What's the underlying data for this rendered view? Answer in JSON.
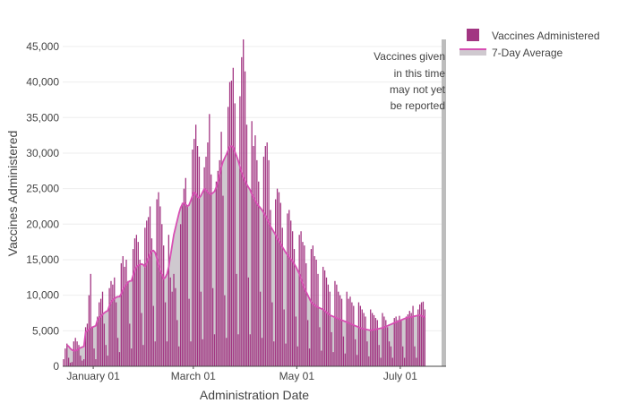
{
  "chart_data": {
    "type": "bar",
    "xlabel": "Administration Date",
    "ylabel": "Vaccines Administered",
    "x_start": "2020-12-14",
    "x_range": [
      "2020-12-14",
      "2021-07-28"
    ],
    "ylim": [
      0,
      46000
    ],
    "grid": true,
    "legend_position": "top-right",
    "x_ticks": [
      {
        "date": "2021-01-01",
        "label": "January 01"
      },
      {
        "date": "2021-03-01",
        "label": "March 01"
      },
      {
        "date": "2021-05-01",
        "label": "May 01"
      },
      {
        "date": "2021-07-01",
        "label": "July 01"
      }
    ],
    "y_ticks": [
      {
        "value": 0,
        "label": "0"
      },
      {
        "value": 5000,
        "label": "5,000"
      },
      {
        "value": 10000,
        "label": "10,000"
      },
      {
        "value": 15000,
        "label": "15,000"
      },
      {
        "value": 20000,
        "label": "20,000"
      },
      {
        "value": 25000,
        "label": "25,000"
      },
      {
        "value": 30000,
        "label": "30,000"
      },
      {
        "value": 35000,
        "label": "35,000"
      },
      {
        "value": 40000,
        "label": "40,000"
      },
      {
        "value": 45000,
        "label": "45,000"
      }
    ],
    "series": [
      {
        "name": "Vaccines Administered",
        "kind": "bar",
        "color": "#a23582",
        "values": [
          1000,
          2500,
          3200,
          1200,
          500,
          600,
          3500,
          4000,
          3500,
          3000,
          1500,
          800,
          1000,
          5500,
          6000,
          10000,
          13000,
          5500,
          2500,
          1000,
          7000,
          9000,
          9500,
          10500,
          6000,
          3000,
          1500,
          11000,
          12000,
          11500,
          12500,
          9000,
          4000,
          2000,
          14500,
          15500,
          14000,
          15000,
          12000,
          6000,
          2500,
          16500,
          18000,
          18500,
          17500,
          15000,
          7500,
          3000,
          19500,
          20500,
          21000,
          22500,
          18000,
          8500,
          3500,
          23500,
          24500,
          22500,
          20000,
          17000,
          9000,
          3500,
          18500,
          12500,
          10500,
          13000,
          11000,
          6500,
          2800,
          20000,
          23000,
          25000,
          26500,
          22500,
          9500,
          3500,
          30500,
          32000,
          34000,
          31000,
          29500,
          10500,
          3800,
          28000,
          29500,
          31500,
          35500,
          27000,
          11000,
          4500,
          26000,
          27500,
          29000,
          33000,
          24000,
          10000,
          4000,
          36500,
          40000,
          40200,
          42000,
          37000,
          13000,
          4500,
          38000,
          43500,
          46000,
          41500,
          34000,
          12500,
          4500,
          34500,
          31000,
          32500,
          29000,
          26000,
          10500,
          4000,
          29500,
          31000,
          31500,
          29000,
          22000,
          9000,
          3500,
          23500,
          25000,
          24500,
          23000,
          19500,
          8000,
          3200,
          21500,
          22000,
          20500,
          19000,
          16500,
          7000,
          2800,
          18500,
          19000,
          17500,
          17000,
          14500,
          6500,
          2500,
          16500,
          17000,
          15500,
          15000,
          13000,
          5500,
          2200,
          14000,
          13500,
          12500,
          11500,
          10500,
          4800,
          2000,
          12000,
          11500,
          10500,
          10000,
          9500,
          4200,
          1800,
          10500,
          9500,
          9800,
          9000,
          8500,
          3800,
          1600,
          9000,
          8500,
          8000,
          7500,
          7000,
          3500,
          1400,
          8000,
          7500,
          7200,
          6800,
          6500,
          3000,
          1200,
          7500,
          7000,
          6500,
          5500,
          3500,
          2800,
          1200,
          6800,
          7000,
          6500,
          7100,
          6500,
          2800,
          1200,
          7000,
          7300,
          7800,
          7500,
          8500,
          2800,
          1200,
          8000,
          8700,
          9000,
          9100,
          8000
        ]
      },
      {
        "name": "7-Day Average",
        "kind": "line-area",
        "color": "#d74fb3",
        "fill": "#cfc9cf",
        "values": [
          null,
          null,
          3000,
          2800,
          2500,
          2300,
          2200,
          2200,
          2300,
          2500,
          2600,
          2700,
          2800,
          4800,
          5000,
          5200,
          5400,
          5500,
          5600,
          5700,
          6500,
          6800,
          7000,
          7300,
          7500,
          7700,
          7800,
          8500,
          9000,
          9300,
          9500,
          9700,
          9800,
          9800,
          10200,
          10800,
          11200,
          11500,
          11800,
          12000,
          12000,
          12800,
          13500,
          14000,
          14200,
          14300,
          14400,
          14300,
          14000,
          14500,
          15200,
          15800,
          16200,
          16300,
          16000,
          15200,
          14200,
          13500,
          13000,
          12300,
          12500,
          13000,
          14000,
          15500,
          17000,
          18500,
          19500,
          20500,
          21500,
          22300,
          22800,
          23000,
          22800,
          22500,
          22700,
          23300,
          24000,
          24500,
          24300,
          23800,
          23700,
          24000,
          24500,
          25000,
          24800,
          24500,
          24300,
          24200,
          24400,
          24600,
          25200,
          26000,
          27000,
          28000,
          28800,
          29300,
          29800,
          30400,
          30900,
          31000,
          30800,
          30200,
          29600,
          28900,
          28100,
          27300,
          26600,
          26100,
          25600,
          25200,
          24800,
          24200,
          23800,
          23300,
          22900,
          22600,
          22300,
          22000,
          21600,
          21200,
          20700,
          20200,
          19700,
          19300,
          18900,
          18500,
          18000,
          17600,
          17200,
          16800,
          16400,
          16000,
          15700,
          15400,
          15100,
          14800,
          14400,
          14000,
          13500,
          13000,
          12300,
          11600,
          11000,
          10500,
          10000,
          9500,
          9000,
          8800,
          8600,
          8400,
          8300,
          8200,
          8100,
          8000,
          7800,
          7600,
          7400,
          7200,
          7100,
          7000,
          6900,
          6800,
          6700,
          6600,
          6500,
          6400,
          6300,
          6200,
          6100,
          6000,
          5900,
          5800,
          5700,
          5600,
          5500,
          5400,
          5300,
          5250,
          5200,
          5150,
          5100,
          5050,
          5100,
          5150,
          5200,
          5250,
          5300,
          5350,
          5400,
          5500,
          5600,
          5700,
          5800,
          5900,
          6000,
          6100,
          6200,
          6300,
          6400,
          6500,
          6600,
          6700,
          6800,
          6850,
          6900,
          6950,
          7000,
          7050,
          7100,
          7150,
          7200,
          7100,
          7000,
          6900
        ]
      }
    ],
    "annotation": {
      "lines": [
        "Vaccines given",
        "in this time",
        "may not yet",
        "be reported"
      ],
      "band_color": "#bdbdbd"
    },
    "legend": [
      {
        "label": "Vaccines Administered",
        "icon": "square-swatch"
      },
      {
        "label": "7-Day Average",
        "icon": "line-area-swatch"
      }
    ]
  }
}
